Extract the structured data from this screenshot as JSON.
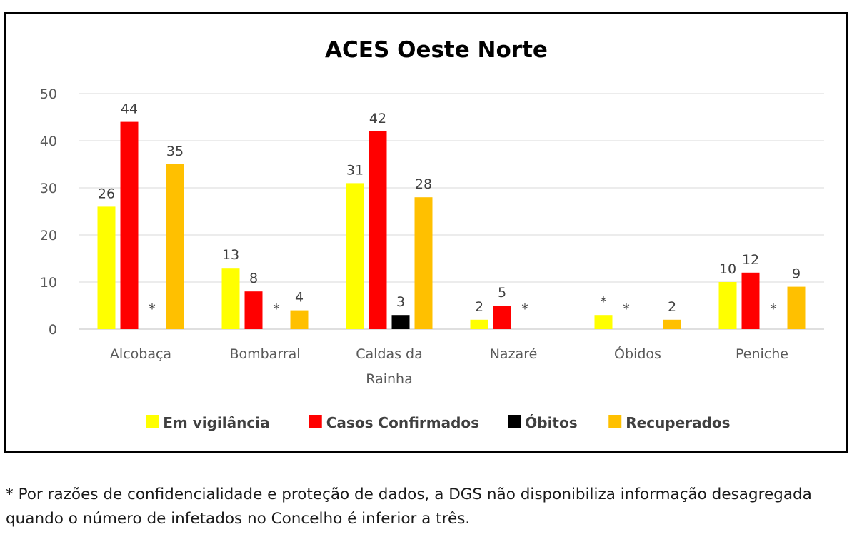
{
  "chart_data": {
    "type": "bar",
    "title": "ACES Oeste Norte",
    "categories": [
      "Alcobaça",
      "Bombarral",
      "Caldas da Rainha",
      "Nazaré",
      "Óbidos",
      "Peniche"
    ],
    "ylim": [
      0,
      50
    ],
    "yticks": [
      0,
      10,
      20,
      30,
      40,
      50
    ],
    "grid": true,
    "legend_position": "bottom",
    "series": [
      {
        "name": "Em vigilância",
        "color": "#ffff00",
        "values": [
          26,
          13,
          31,
          2,
          3,
          10
        ],
        "labels": [
          "26",
          "13",
          "31",
          "2",
          "*",
          "10"
        ]
      },
      {
        "name": "Casos Confirmados",
        "color": "#ff0000",
        "values": [
          44,
          8,
          42,
          5,
          null,
          12
        ],
        "labels": [
          "44",
          "8",
          "42",
          "5",
          "*",
          "12"
        ]
      },
      {
        "name": "Óbitos",
        "color": "#000000",
        "values": [
          null,
          null,
          3,
          null,
          null,
          null
        ],
        "labels": [
          "*",
          "*",
          "3",
          "*",
          "",
          "*"
        ]
      },
      {
        "name": "Recuperados",
        "color": "#ffc000",
        "values": [
          35,
          4,
          28,
          null,
          2,
          9
        ],
        "labels": [
          "35",
          "4",
          "28",
          "",
          "2",
          "9"
        ]
      }
    ]
  },
  "footnote": "* Por razões de confidencialidade e proteção de dados, a DGS não disponibiliza informação desagregada quando o número de infetados no Concelho é inferior a três."
}
